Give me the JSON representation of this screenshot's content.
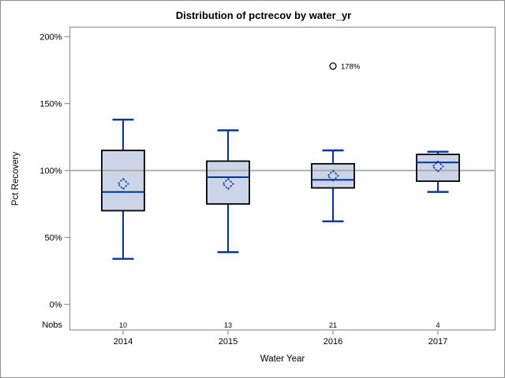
{
  "chart_data": {
    "type": "box",
    "title": "Distribution of pctrecov by water_yr",
    "xlabel": "Water Year",
    "ylabel": "Pct Recovery",
    "ylim": [
      0,
      200
    ],
    "yticks": [
      0,
      50,
      100,
      150,
      200
    ],
    "ytick_suffix": "%",
    "reference_line": 100,
    "grid": false,
    "legend": "none",
    "categories": [
      "2014",
      "2015",
      "2016",
      "2017"
    ],
    "nobs_label": "Nobs",
    "nobs": [
      "10",
      "13",
      "21",
      "4"
    ],
    "boxes": [
      {
        "category": "2014",
        "whisker_low": 34,
        "q1": 70,
        "median": 84,
        "mean": 90,
        "q3": 115,
        "whisker_high": 138,
        "outliers": []
      },
      {
        "category": "2015",
        "whisker_low": 39,
        "q1": 75,
        "median": 95,
        "mean": 90,
        "q3": 107,
        "whisker_high": 130,
        "outliers": []
      },
      {
        "category": "2016",
        "whisker_low": 62,
        "q1": 87,
        "median": 93,
        "mean": 96,
        "q3": 105,
        "whisker_high": 115,
        "outliers": [
          {
            "value": 178,
            "label": "178%"
          }
        ]
      },
      {
        "category": "2017",
        "whisker_low": 84,
        "q1": 92,
        "median": 106,
        "mean": 103,
        "q3": 112,
        "whisker_high": 114,
        "outliers": []
      }
    ],
    "colors": {
      "box_fill": "#ccd5e8",
      "box_border": "#000000",
      "whisker": "#0033a0",
      "median": "#0033a0",
      "mean_marker": "#0033a0",
      "outlier_marker": "#000000",
      "reference_line": "#a6a6a6",
      "frame": "#9a9a9a",
      "text": "#000000",
      "background": "#ffffff"
    }
  }
}
